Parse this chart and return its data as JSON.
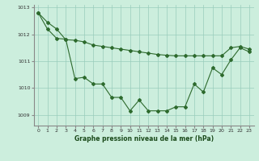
{
  "title": "Graphe pression niveau de la mer (hPa)",
  "background_color": "#cceedd",
  "grid_color": "#99ccbb",
  "line_color": "#2d6a2d",
  "spine_color": "#888888",
  "ylim": [
    1008.6,
    1013.1
  ],
  "xlim": [
    -0.5,
    23.5
  ],
  "yticks": [
    1009,
    1010,
    1011,
    1012,
    1013
  ],
  "xticks": [
    0,
    1,
    2,
    3,
    4,
    5,
    6,
    7,
    8,
    9,
    10,
    11,
    12,
    13,
    14,
    15,
    16,
    17,
    18,
    19,
    20,
    21,
    22,
    23
  ],
  "line1": [
    1012.8,
    1012.45,
    1012.2,
    1011.8,
    1011.78,
    1011.72,
    1011.6,
    1011.55,
    1011.5,
    1011.45,
    1011.4,
    1011.35,
    1011.3,
    1011.25,
    1011.22,
    1011.2,
    1011.2,
    1011.2,
    1011.2,
    1011.2,
    1011.2,
    1011.5,
    1011.55,
    1011.45
  ],
  "line2": [
    1012.8,
    1012.2,
    1011.85,
    1011.82,
    1010.35,
    1010.4,
    1010.15,
    1010.15,
    1009.65,
    1009.65,
    1009.15,
    1009.55,
    1009.15,
    1009.15,
    1009.15,
    1009.3,
    1009.3,
    1010.15,
    1009.85,
    1010.75,
    1010.5,
    1011.05,
    1011.5,
    1011.35
  ],
  "marker_size": 2.0,
  "line_width": 0.8,
  "tick_labelsize": 4.5,
  "xlabel_fontsize": 5.5,
  "xlabel_fontweight": "bold",
  "xlabel_color": "#1a4a1a"
}
